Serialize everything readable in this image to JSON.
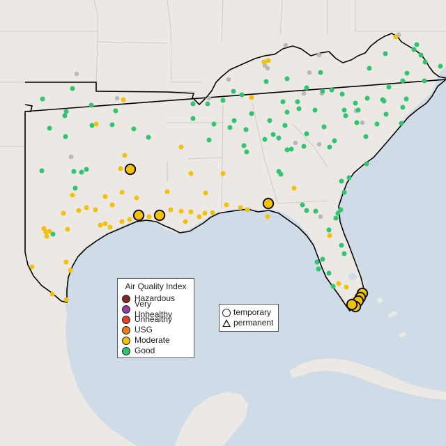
{
  "legend": {
    "title": "Air Quality Index",
    "items": [
      {
        "label": "Hazardous",
        "color": "#7e2a23"
      },
      {
        "label": "Very Unhealthy",
        "color": "#8f3fa4"
      },
      {
        "label": "Unhealthy",
        "color": "#e4402e"
      },
      {
        "label": "USG",
        "color": "#ef7d16"
      },
      {
        "label": "Moderate",
        "color": "#f2c10e"
      },
      {
        "label": "Good",
        "color": "#2fc470"
      }
    ]
  },
  "monitor_type_legend": {
    "items": [
      {
        "label": "temporary",
        "icon": "circle-icon"
      },
      {
        "label": "permanent",
        "icon": "triangle-icon"
      }
    ]
  },
  "colors": {
    "good": "#2fc470",
    "moderate": "#f2c10e",
    "no_data": "#b9b9bb",
    "land": "#ede9e5",
    "water": "#cfdbe7",
    "region_outline": "#000000"
  },
  "large_temporary_monitors": {
    "category": "Moderate",
    "count": 9
  }
}
